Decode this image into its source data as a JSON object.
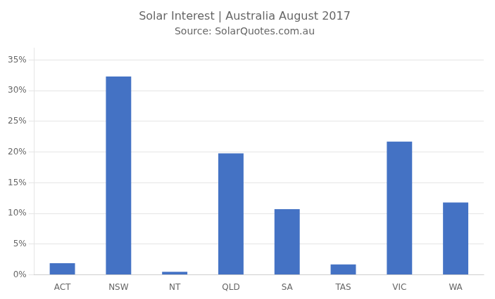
{
  "chart_data": {
    "type": "bar",
    "title": "Solar Interest | Australia August 2017",
    "subtitle": "Source: SolarQuotes.com.au",
    "categories": [
      "ACT",
      "NSW",
      "NT",
      "QLD",
      "SA",
      "TAS",
      "VIC",
      "WA"
    ],
    "values": [
      0.019,
      0.323,
      0.005,
      0.198,
      0.107,
      0.017,
      0.217,
      0.118
    ],
    "color": "#4472C4",
    "ylim": [
      0,
      0.37
    ],
    "yticks": [
      {
        "value": 0,
        "label": "0%"
      },
      {
        "value": 0.05,
        "label": "5%"
      },
      {
        "value": 0.1,
        "label": "10%"
      },
      {
        "value": 0.15,
        "label": "15%"
      },
      {
        "value": 0.2,
        "label": "20%"
      },
      {
        "value": 0.25,
        "label": "25%"
      },
      {
        "value": 0.3,
        "label": "30%"
      },
      {
        "value": 0.35,
        "label": "35%"
      }
    ],
    "grid": true
  }
}
